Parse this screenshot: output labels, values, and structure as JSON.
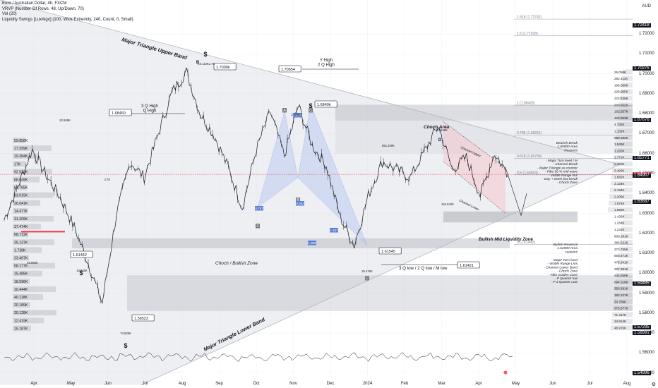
{
  "header": {
    "title": "Euro / Australian Dollar, 4h, FXCM",
    "indicators": [
      "VRVP (Number Of Rows, 48, Up/Down, 70)",
      "Vol (20)",
      "Liquidity Swings [LuxAlgo] (100, Wick Extremity, 240, Count, 0, Small)"
    ],
    "currency": "AUD"
  },
  "colors": {
    "up_candle": "#131722",
    "down_candle": "#131722",
    "triangle_fill": "#d1d4dc",
    "harmonic_fill": "#b2c5f0",
    "channel_fill": "#f5c4c9",
    "current_price": "#f23645"
  },
  "chart_data": {
    "type": "line",
    "symbol": "EURAUD",
    "timeframe": "4h",
    "x_axis_months": [
      "Apr",
      "May",
      "Jun",
      "Jul",
      "Aug",
      "Sep",
      "Oct",
      "Nov",
      "Dec",
      "2024",
      "Feb",
      "Mar",
      "Apr",
      "May",
      "Jun",
      "Jul",
      "Aug"
    ],
    "ylim": [
      1.546,
      1.737
    ],
    "y_ticks": [
      1.72,
      1.71,
      1.7,
      1.69,
      1.68,
      1.67,
      1.66,
      1.65,
      1.64,
      1.63,
      1.62,
      1.61,
      1.6,
      1.59,
      1.58,
      1.57,
      1.56,
      1.55
    ],
    "price_series_approx": [
      [
        "Apr",
        1.627
      ],
      [
        "Apr-mid",
        1.644
      ],
      [
        "May-early",
        1.662
      ],
      [
        "May",
        1.649
      ],
      [
        "May-mid",
        1.638
      ],
      [
        "May-late",
        1.623
      ],
      [
        "Jun-early",
        1.605
      ],
      [
        "Jun",
        1.585
      ],
      [
        "Jun-mid",
        1.629
      ],
      [
        "Jul-early",
        1.656
      ],
      [
        "Jul",
        1.648
      ],
      [
        "Jul-mid",
        1.67
      ],
      [
        "Aug",
        1.691
      ],
      [
        "Aug-mid",
        1.701
      ],
      [
        "Aug-late",
        1.68
      ],
      [
        "Sep",
        1.669
      ],
      [
        "Sep-mid",
        1.653
      ],
      [
        "Oct",
        1.633
      ],
      [
        "Oct-mid",
        1.662
      ],
      [
        "Oct-late",
        1.681
      ],
      [
        "Nov-early",
        1.659
      ],
      [
        "Nov-mid",
        1.684
      ],
      [
        "Nov-late",
        1.664
      ],
      [
        "Dec",
        1.654
      ],
      [
        "Dec-mid",
        1.628
      ],
      [
        "2024",
        1.614
      ],
      [
        "Jan-mid",
        1.639
      ],
      [
        "Jan-late",
        1.656
      ],
      [
        "Feb",
        1.652
      ],
      [
        "Feb-mid",
        1.648
      ],
      [
        "Mar",
        1.661
      ],
      [
        "Mar-early",
        1.674
      ],
      [
        "Mar-mid",
        1.652
      ],
      [
        "Apr-early",
        1.658
      ],
      [
        "Apr-mid",
        1.639
      ],
      [
        "Apr-late",
        1.66
      ],
      [
        "Apr-end",
        1.6495
      ]
    ],
    "current_price": "1.64957",
    "key_levels": [
      {
        "label": "1.68469",
        "value": 1.68469
      },
      {
        "label": "1.70654",
        "value": 1.70654
      },
      {
        "label": "1.61442",
        "value": 1.61442
      },
      {
        "label": "1.61545",
        "value": 1.61545
      },
      {
        "label": "1.61421",
        "value": 1.61421
      },
      {
        "label": "1.58523",
        "value": 1.58523
      },
      {
        "label": "1.7000k",
        "value": 1.7
      },
      {
        "label": "1.6849k",
        "value": 1.6849
      }
    ],
    "fib_levels": [
      {
        "label": "1.618 (1.72742)",
        "value": 1.72742
      },
      {
        "label": "1.5 (1.71918)",
        "value": 1.71918
      },
      {
        "label": "1 (1.68426)",
        "value": 1.68426
      },
      {
        "label": "0.786 (1.66931)",
        "value": 1.66931
      },
      {
        "label": "0.618 (1.65758)",
        "value": 1.65758
      },
      {
        "label": "0.5 (1.64934)",
        "value": 1.64934
      },
      {
        "label": "0 (1.61442)",
        "value": 1.61442
      }
    ],
    "annotations": {
      "upper_band": "Major Triangle Upper Band",
      "lower_band": "Major Triangle Lower Band",
      "q3_high": "3 Q High\nQ High",
      "y_high": "Y High\n2 Q High",
      "choch_area": "Choch Area",
      "choch_bullish": "Choch / Bullish Zone",
      "q3_low": "3 Q low / 2 Q low / M low",
      "liquidity_zone": "Bullish Mid Liquidity Zone",
      "bearish_break": "Bearish Break\n1.65000 Area\nReasons",
      "bearish_reasons": "- Major Turn level / M\n- Channel Break\n- Major Triangle as counter\n- Fibo 50 % mid wave\n- Visible Range lms\n- Day + week low break\n- Choch Zone",
      "bullish_reversal": "Bullish Reversal\n1.62900 Area\nreasons",
      "bullish_reasons": "- Major Turn level\n- Visible Range Lms\n- Channel Lower Band\n- Choch Zone\n- Fibo Golden Zone\n- P Quarter low\n- P 3 Quarter Low",
      "channel_upper": "Channel Upper",
      "channel_lower": "Channel Lower",
      "harmonic_points": [
        "A",
        "B",
        "C",
        "D",
        "X"
      ],
      "harmonic_ratios": [
        "0.757",
        "1.167",
        "1.369",
        "0.978",
        "0.382"
      ],
      "dollar_sign": "$",
      "vol_swings": [
        "22.849K",
        "2.7K",
        "74.825K",
        "10.113K",
        "851.259K",
        "16.845K",
        "164.642K",
        "10.649K",
        "25.476K",
        "16.883K",
        "2.976K",
        "1.7K"
      ],
      "vrvp_left": [
        "59.858K",
        "17.399K",
        "19.384K",
        "17K",
        "92.532K",
        "68.649K",
        "61.765K",
        "63.015K",
        "26.041K",
        "14.477K",
        "31.209K",
        "37.474K",
        "68.711K",
        "25.137K",
        "1.728K",
        "23.497K",
        "58.177K",
        "15.485K",
        "18.596K",
        "10.444K",
        "40.118K",
        "20.189K",
        "20.128K",
        "12.419K",
        "15.187K"
      ],
      "vrvp_right": [
        "26.058K",
        "292.411K",
        "166.589K",
        "228.905K",
        "222.536K",
        "203.952K",
        "162.557K",
        "422.553K",
        "4.732K",
        "1.131K",
        "989.282K",
        "1.549K",
        "1.225K",
        "1.771K",
        "2.350K",
        "3.493K",
        "1.682K",
        "2.134K",
        "2.134K",
        "2.206K",
        "1.674K",
        "1.663K",
        "1.436K",
        "1.284K",
        "1.231K",
        "609.281K",
        "386.221K",
        "374.765K",
        "556.671K",
        "475.341K",
        "327.361K",
        "444.559K",
        "694.318K",
        "556.581K",
        "192.227K",
        "34.789K",
        "375.677K",
        "71.417K",
        "34.914K",
        "48.976K"
      ]
    }
  },
  "price_axis": {
    "labels": [
      "1.72000",
      "1.71000",
      "1.70000",
      "1.69000",
      "1.68000",
      "1.67000",
      "1.66000",
      "1.65000",
      "1.64000",
      "1.63000",
      "1.62000",
      "1.61000",
      "1.60000",
      "1.59000",
      "1.58000",
      "1.57000",
      "1.56000",
      "1.55000"
    ],
    "tags": [
      "1.72418",
      "1.70275",
      "1.67676",
      "1.65771",
      "1.64957",
      "1.64907",
      "1.63587",
      "1.59485",
      "1.57295",
      "1.56991",
      "1.54996"
    ]
  }
}
